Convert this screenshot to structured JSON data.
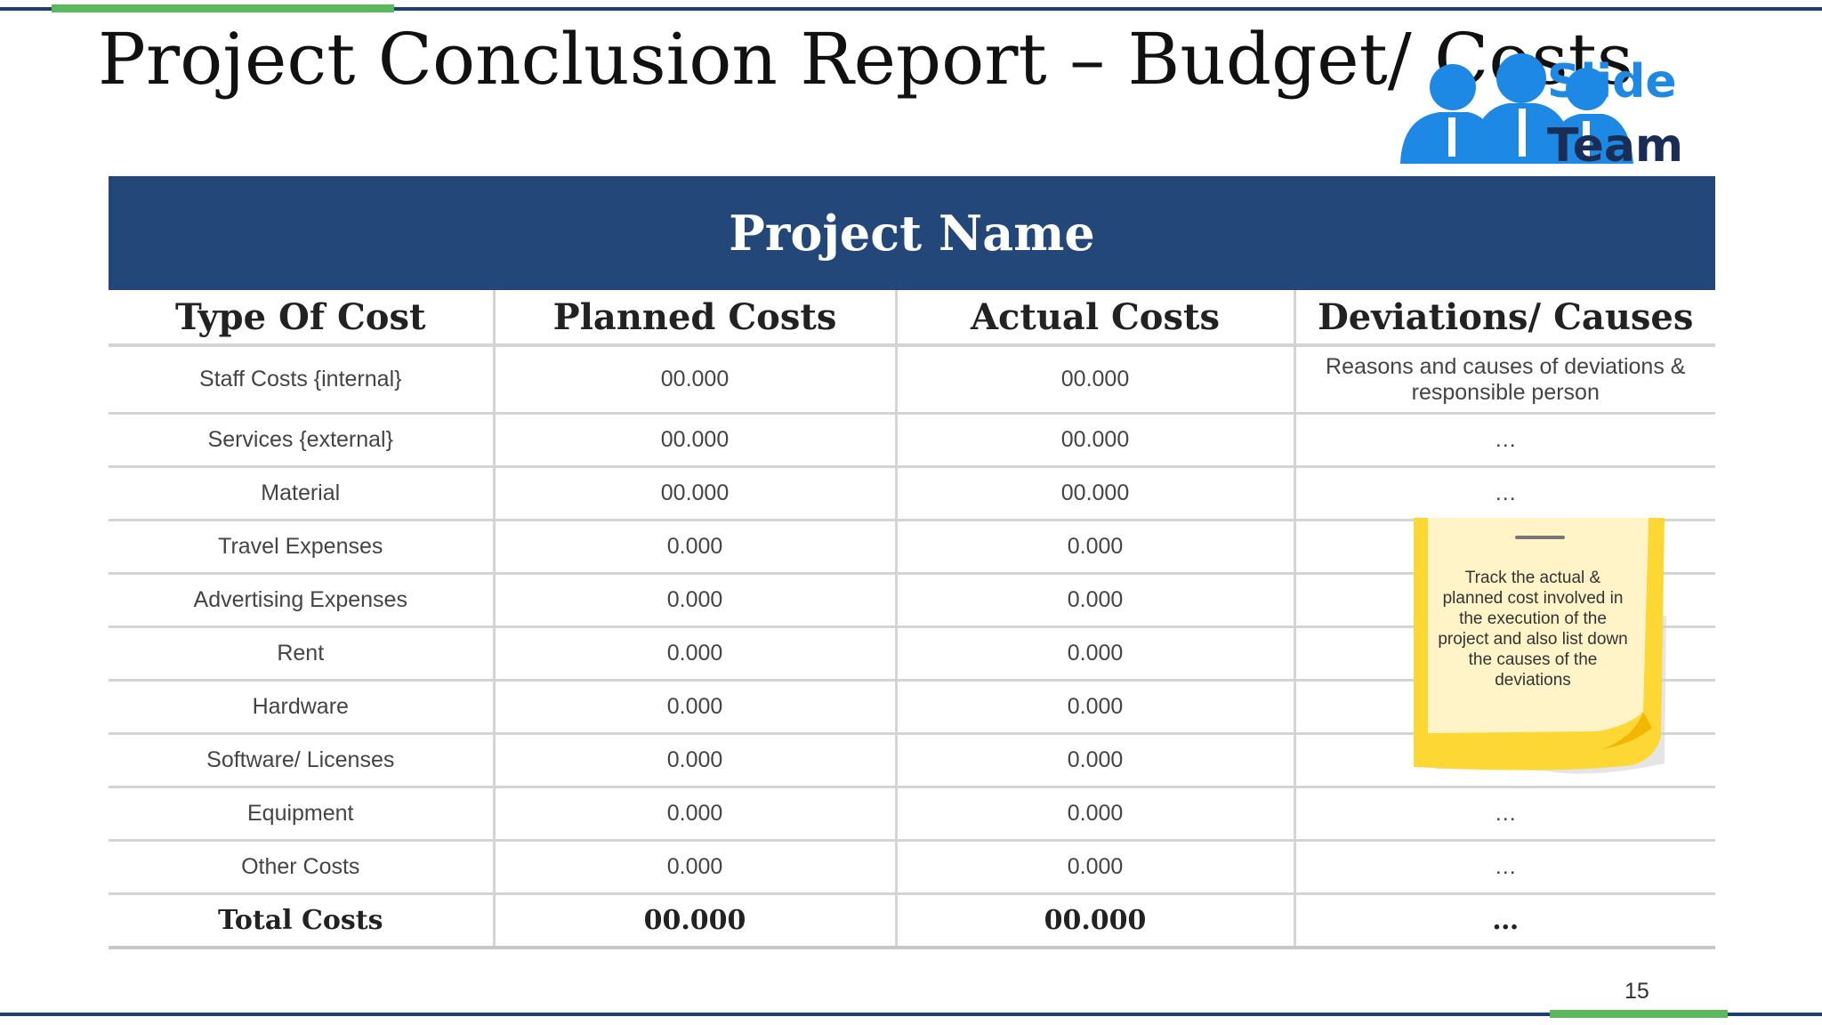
{
  "slide": {
    "title": "Project Conclusion Report – Budget/ Costs",
    "page_number": "15"
  },
  "logo": {
    "line1": "Slide",
    "line2": "Team",
    "colors": {
      "blue": "#1e88e5",
      "navy": "#1a2d55"
    }
  },
  "table": {
    "banner": "Project Name",
    "headers": [
      "Type Of Cost",
      "Planned Costs",
      "Actual Costs",
      "Deviations/ Causes"
    ],
    "rows": [
      [
        "Staff Costs {internal}",
        "00.000",
        "00.000",
        "Reasons and causes of deviations & responsible person"
      ],
      [
        "Services {external}",
        "00.000",
        "00.000",
        "…"
      ],
      [
        "Material",
        "00.000",
        "00.000",
        "…"
      ],
      [
        "Travel Expenses",
        "0.000",
        "0.000",
        ""
      ],
      [
        "Advertising Expenses",
        "0.000",
        "0.000",
        ""
      ],
      [
        "Rent",
        "0.000",
        "0.000",
        ""
      ],
      [
        "Hardware",
        "0.000",
        "0.000",
        ""
      ],
      [
        "Software/ Licenses",
        "0.000",
        "0.000",
        "…"
      ],
      [
        "Equipment",
        "0.000",
        "0.000",
        "…"
      ],
      [
        "Other Costs",
        "0.000",
        "0.000",
        "…"
      ]
    ],
    "total": [
      "Total Costs",
      "00.000",
      "00.000",
      "…"
    ]
  },
  "sticky_note": {
    "text": "Track the actual & planned cost involved in the execution of the project and also list down the causes of the deviations",
    "color": "#fdd835"
  },
  "colors": {
    "accent_navy": "#24477a",
    "accent_green": "#5cb85c"
  }
}
